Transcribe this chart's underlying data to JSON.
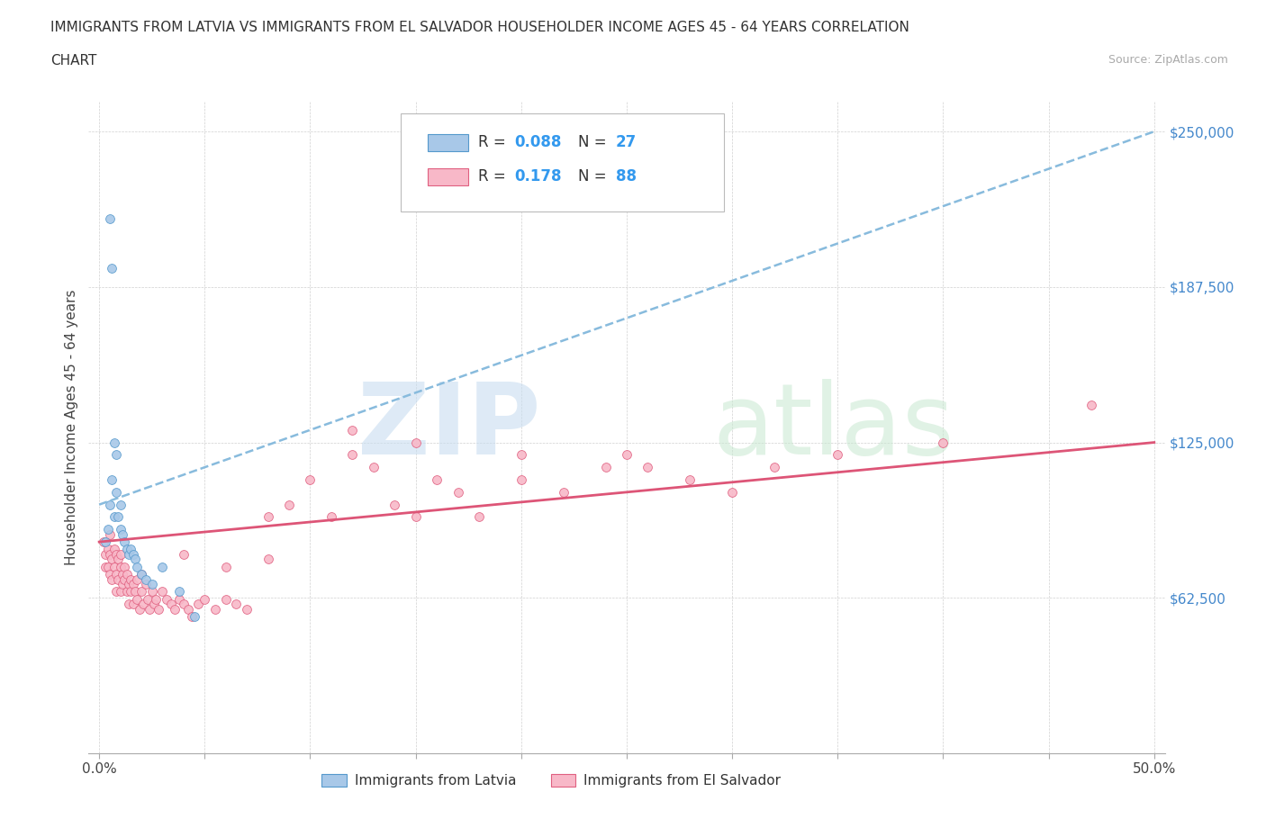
{
  "title_line1": "IMMIGRANTS FROM LATVIA VS IMMIGRANTS FROM EL SALVADOR HOUSEHOLDER INCOME AGES 45 - 64 YEARS CORRELATION",
  "title_line2": "CHART",
  "source_text": "Source: ZipAtlas.com",
  "ylabel": "Householder Income Ages 45 - 64 years",
  "xlim": [
    -0.005,
    0.505
  ],
  "ylim": [
    0,
    262500
  ],
  "yticks": [
    0,
    62500,
    125000,
    187500,
    250000
  ],
  "ytick_labels": [
    "",
    "$62,500",
    "$125,000",
    "$187,500",
    "$250,000"
  ],
  "xticks": [
    0.0,
    0.05,
    0.1,
    0.15,
    0.2,
    0.25,
    0.3,
    0.35,
    0.4,
    0.45,
    0.5
  ],
  "xtick_labels_show": [
    "0.0%",
    "",
    "",
    "",
    "",
    "",
    "",
    "",
    "",
    "",
    "50.0%"
  ],
  "color_latvia_fill": "#a8c8e8",
  "color_latvia_edge": "#5599cc",
  "color_elsalvador_fill": "#f8b8c8",
  "color_elsalvador_edge": "#e06080",
  "color_trend_latvia": "#88bbdd",
  "color_trend_elsalvador": "#dd5577",
  "legend_label1": "Immigrants from Latvia",
  "legend_label2": "Immigrants from El Salvador",
  "watermark_zip": "ZIP",
  "watermark_atlas": "atlas",
  "latvia_x": [
    0.003,
    0.004,
    0.005,
    0.005,
    0.006,
    0.006,
    0.007,
    0.007,
    0.008,
    0.008,
    0.009,
    0.01,
    0.01,
    0.011,
    0.012,
    0.013,
    0.014,
    0.015,
    0.016,
    0.017,
    0.018,
    0.02,
    0.022,
    0.025,
    0.03,
    0.038,
    0.045
  ],
  "latvia_y": [
    85000,
    90000,
    215000,
    100000,
    195000,
    110000,
    125000,
    95000,
    120000,
    105000,
    95000,
    100000,
    90000,
    88000,
    85000,
    82000,
    80000,
    82000,
    80000,
    78000,
    75000,
    72000,
    70000,
    68000,
    75000,
    65000,
    55000
  ],
  "elsalvador_x": [
    0.002,
    0.003,
    0.003,
    0.004,
    0.004,
    0.005,
    0.005,
    0.005,
    0.006,
    0.006,
    0.007,
    0.007,
    0.008,
    0.008,
    0.008,
    0.009,
    0.009,
    0.01,
    0.01,
    0.01,
    0.011,
    0.011,
    0.012,
    0.012,
    0.013,
    0.013,
    0.014,
    0.014,
    0.015,
    0.015,
    0.016,
    0.016,
    0.017,
    0.018,
    0.018,
    0.019,
    0.02,
    0.02,
    0.021,
    0.022,
    0.023,
    0.024,
    0.025,
    0.026,
    0.027,
    0.028,
    0.03,
    0.032,
    0.034,
    0.036,
    0.038,
    0.04,
    0.042,
    0.044,
    0.047,
    0.05,
    0.055,
    0.06,
    0.065,
    0.07,
    0.08,
    0.09,
    0.1,
    0.11,
    0.12,
    0.13,
    0.14,
    0.15,
    0.16,
    0.17,
    0.18,
    0.2,
    0.22,
    0.24,
    0.12,
    0.15,
    0.2,
    0.25,
    0.26,
    0.28,
    0.3,
    0.32,
    0.35,
    0.4,
    0.47,
    0.04,
    0.06,
    0.08
  ],
  "elsalvador_y": [
    85000,
    80000,
    75000,
    82000,
    75000,
    88000,
    80000,
    72000,
    78000,
    70000,
    82000,
    75000,
    80000,
    72000,
    65000,
    78000,
    70000,
    80000,
    75000,
    65000,
    72000,
    68000,
    75000,
    70000,
    72000,
    65000,
    68000,
    60000,
    70000,
    65000,
    68000,
    60000,
    65000,
    70000,
    62000,
    58000,
    72000,
    65000,
    60000,
    68000,
    62000,
    58000,
    65000,
    60000,
    62000,
    58000,
    65000,
    62000,
    60000,
    58000,
    62000,
    60000,
    58000,
    55000,
    60000,
    62000,
    58000,
    62000,
    60000,
    58000,
    95000,
    100000,
    110000,
    95000,
    120000,
    115000,
    100000,
    95000,
    110000,
    105000,
    95000,
    110000,
    105000,
    115000,
    130000,
    125000,
    120000,
    120000,
    115000,
    110000,
    105000,
    115000,
    120000,
    125000,
    140000,
    80000,
    75000,
    78000
  ]
}
